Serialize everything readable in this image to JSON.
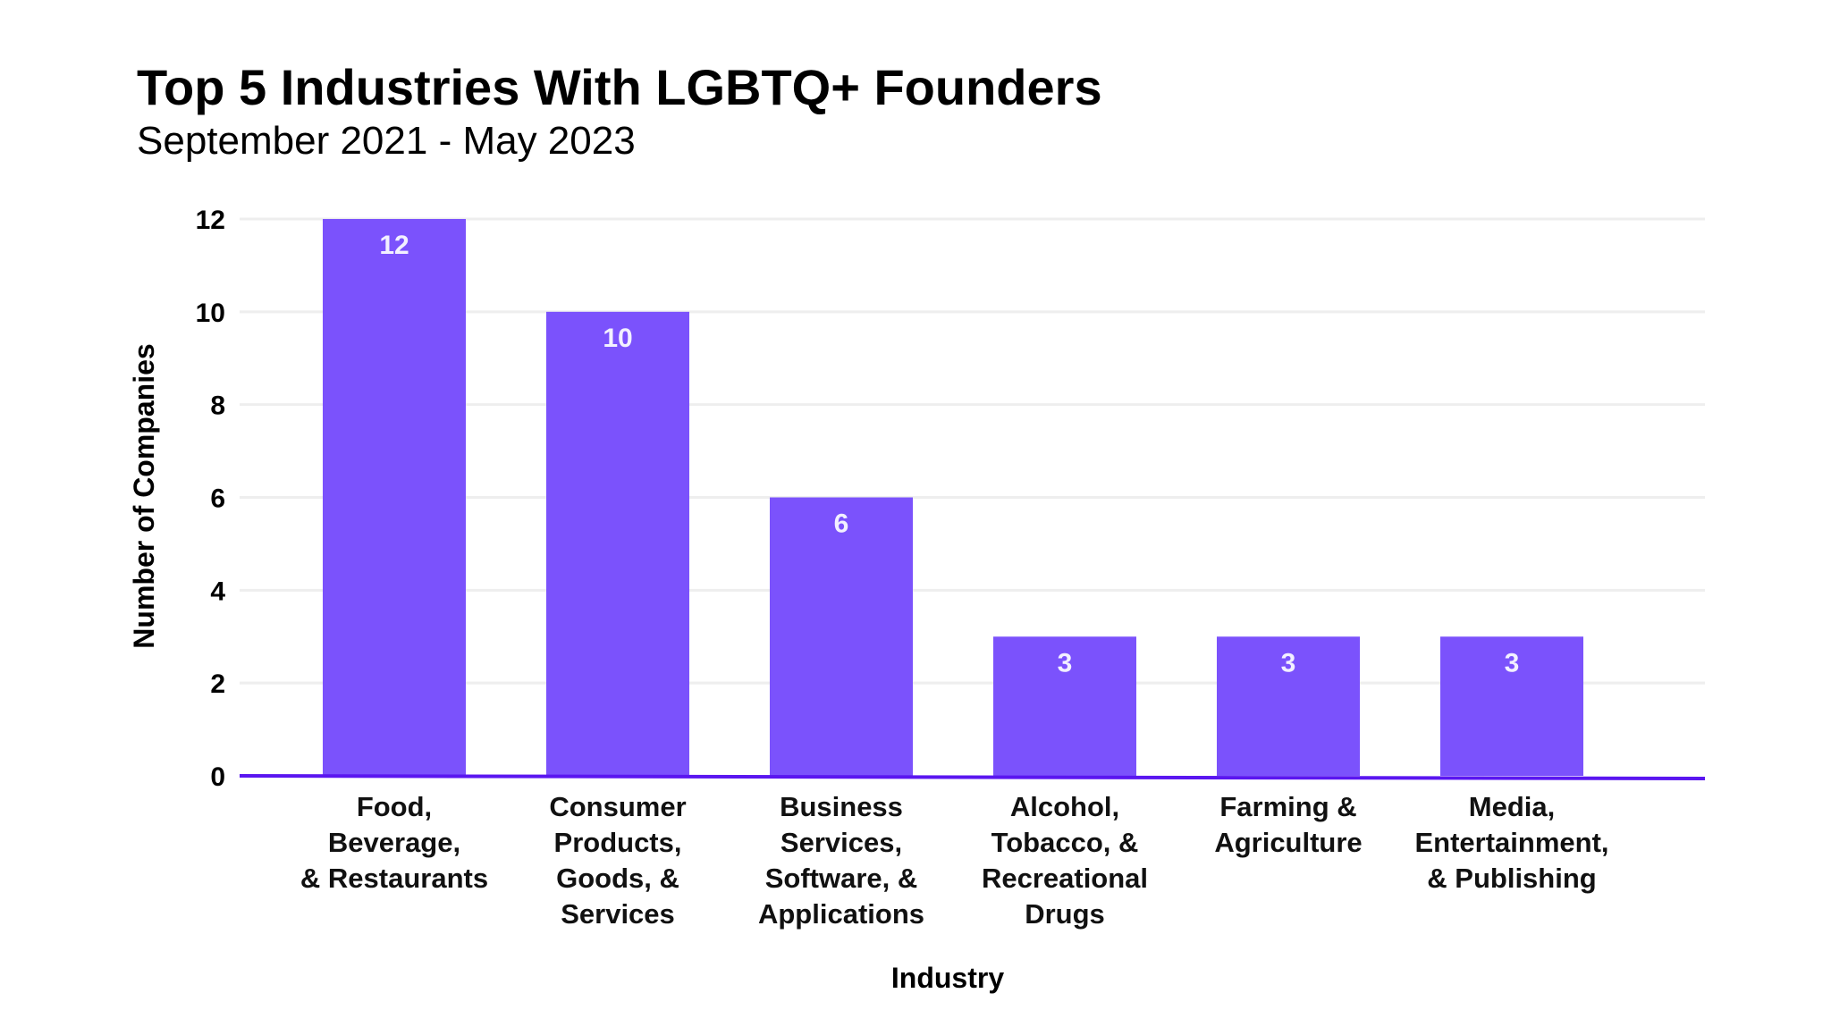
{
  "chart_data": {
    "type": "bar",
    "title": "Top 5 Industries With LGBTQ+ Founders",
    "subtitle": "September 2021 - May 2023",
    "xlabel": "Industry",
    "ylabel": "Number of Companies",
    "categories": [
      [
        "Food,",
        "Beverage,",
        "& Restaurants"
      ],
      [
        "Consumer",
        "Products,",
        "Goods, &",
        "Services"
      ],
      [
        "Business",
        "Services,",
        "Software, &",
        "Applications"
      ],
      [
        "Alcohol,",
        "Tobacco, &",
        "Recreational",
        "Drugs"
      ],
      [
        "Farming &",
        "Agriculture"
      ],
      [
        "Media,",
        "Entertainment,",
        "& Publishing"
      ]
    ],
    "values": [
      12,
      10,
      6,
      3,
      3,
      3
    ],
    "data_labels": [
      "12",
      "10",
      "6",
      "3",
      "3",
      "3"
    ],
    "ylim": [
      0,
      12
    ],
    "yticks": [
      "0",
      "2",
      "4",
      "6",
      "8",
      "10",
      "12"
    ],
    "grid": true,
    "legend": "none",
    "colors": {
      "bar": "#7b52fc",
      "axis": "#5a16f0",
      "grid": "#eeeeee"
    }
  }
}
